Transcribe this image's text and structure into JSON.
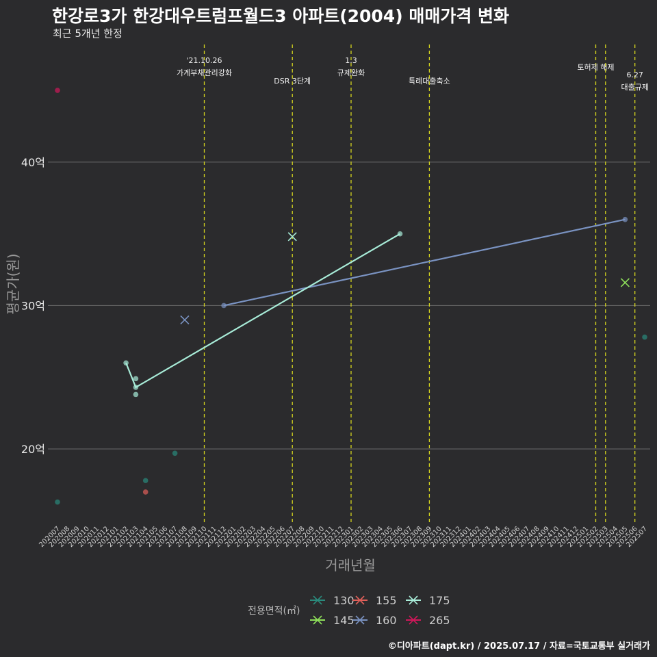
{
  "title": "한강로3가 한강대우트럼프월드3 아파트(2004) 매매가격 변화",
  "subtitle": "최근 5개년 한정",
  "caption": "©디아파트(dapt.kr) / 2025.07.17 / 자료=국토교통부 실거래가",
  "chart_data": {
    "type": "scatter+line",
    "xlabel": "거래년월",
    "ylabel": "평균가(원)",
    "ylim_eok": [
      14.8,
      48.2
    ],
    "yticks": [
      {
        "value": 20,
        "label": "20억"
      },
      {
        "value": 30,
        "label": "30억"
      },
      {
        "value": 40,
        "label": "40억"
      }
    ],
    "x_categories": [
      "202007",
      "202008",
      "202009",
      "202010",
      "202011",
      "202012",
      "202101",
      "202102",
      "202103",
      "202104",
      "202105",
      "202106",
      "202107",
      "202108",
      "202109",
      "202110",
      "202111",
      "202112",
      "202201",
      "202202",
      "202203",
      "202204",
      "202205",
      "202206",
      "202207",
      "202208",
      "202209",
      "202210",
      "202211",
      "202212",
      "202301",
      "202302",
      "202303",
      "202304",
      "202305",
      "202306",
      "202307",
      "202308",
      "202309",
      "202310",
      "202311",
      "202312",
      "202401",
      "202402",
      "202403",
      "202404",
      "202405",
      "202406",
      "202407",
      "202408",
      "202409",
      "202410",
      "202411",
      "202412",
      "202501",
      "202502",
      "202503",
      "202504",
      "202505",
      "202506",
      "202507"
    ],
    "legend_title": "전용면적(㎡)",
    "series": [
      {
        "name": "130",
        "color": "#2a8a7c",
        "points": [
          {
            "x": "202007",
            "y": 16.3
          },
          {
            "x": "202104",
            "y": 17.8
          },
          {
            "x": "202107",
            "y": 19.7
          },
          {
            "x": "202507",
            "y": 27.8
          }
        ],
        "line": false
      },
      {
        "name": "145",
        "color": "#8ee05a",
        "points": [
          {
            "x": "202505",
            "y": 31.6,
            "marker": "x"
          }
        ],
        "line": false
      },
      {
        "name": "155",
        "color": "#e0605a",
        "points": [
          {
            "x": "202104",
            "y": 17.0
          }
        ],
        "line": false
      },
      {
        "name": "160",
        "color": "#7a93c2",
        "points": [
          {
            "x": "202108",
            "y": 29.0,
            "marker": "x"
          },
          {
            "x": "202112",
            "y": 30.0
          },
          {
            "x": "202505",
            "y": 36.0
          }
        ],
        "line_from": 1
      },
      {
        "name": "175",
        "color": "#a8ecd8",
        "points": [
          {
            "x": "202102",
            "y": 26.0
          },
          {
            "x": "202103",
            "y": 24.3
          },
          {
            "x": "202207",
            "y": 34.8,
            "marker": "x"
          },
          {
            "x": "202306",
            "y": 35.0
          }
        ],
        "line_path": [
          {
            "x": "202102",
            "y": 26.0
          },
          {
            "x": "202103",
            "y": 24.3
          },
          {
            "x": "202306",
            "y": 35.0
          }
        ],
        "extra_points": [
          {
            "x": "202103",
            "y": 24.9
          },
          {
            "x": "202103",
            "y": 23.8
          }
        ]
      },
      {
        "name": "265",
        "color": "#d0185a",
        "points": [
          {
            "x": "202007",
            "y": 45.0
          }
        ],
        "line": false
      }
    ],
    "events": [
      {
        "x": "202110",
        "lines": [
          "'21.10.26",
          "가계부채관리강화"
        ],
        "label_y": "high"
      },
      {
        "x": "202207",
        "lines": [
          "DSR 3단계"
        ],
        "label_y": "low"
      },
      {
        "x": "202301",
        "lines": [
          "1.3",
          "규제완화"
        ],
        "label_y": "high"
      },
      {
        "x": "202309",
        "lines": [
          "특례대출축소"
        ],
        "label_y": "low"
      },
      {
        "x": "202502",
        "lines": [
          "토허제 해제"
        ],
        "label_y": "mid"
      },
      {
        "x": "202503",
        "lines": [],
        "label_y": "none"
      },
      {
        "x": "202506",
        "lines": [
          "6.27",
          "대출규제"
        ],
        "label_y": "lowest"
      }
    ]
  }
}
